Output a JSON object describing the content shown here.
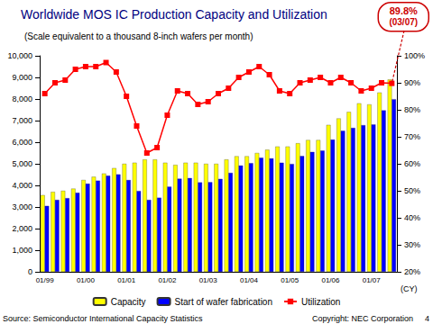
{
  "chart_data": {
    "type": "bar",
    "title": "Worldwide MOS IC Production Capacity and Utilization",
    "subtitle": "(Scale equivalent to a thousand 8-inch wafers per month)",
    "x_label": "(CY)",
    "annotation": [
      "89.8%",
      "(03/07)"
    ],
    "source": "Source: Semiconductor International Capacity Statistics",
    "copyright": "Copyright: NEC Corporation",
    "page_number": "4",
    "categories": [
      "01/99",
      null,
      null,
      null,
      "01/00",
      null,
      null,
      null,
      "01/01",
      null,
      null,
      null,
      "01/02",
      null,
      null,
      null,
      "01/03",
      null,
      null,
      null,
      "01/04",
      null,
      null,
      null,
      "01/05",
      null,
      null,
      null,
      "01/06",
      null,
      null,
      null,
      "01/07",
      null,
      null
    ],
    "series": [
      {
        "name": "Capacity",
        "type": "bar",
        "color": "#ffff00",
        "values": [
          3550,
          3700,
          3750,
          3850,
          4250,
          4400,
          4550,
          4800,
          5000,
          5050,
          5200,
          5200,
          5050,
          4950,
          5050,
          5050,
          5000,
          5000,
          5200,
          5350,
          5350,
          5500,
          5650,
          5800,
          5800,
          5950,
          6100,
          6100,
          6800,
          7100,
          7400,
          7800,
          7750,
          8300,
          8900
        ]
      },
      {
        "name": "Start of wafer fabrication",
        "type": "bar",
        "color": "#0000ff",
        "values": [
          3050,
          3330,
          3410,
          3660,
          4080,
          4220,
          4450,
          4510,
          4250,
          3740,
          3330,
          3430,
          3940,
          4310,
          4340,
          4140,
          4150,
          4300,
          4580,
          4920,
          5030,
          5280,
          5250,
          5050,
          4990,
          5360,
          5550,
          5610,
          6120,
          6530,
          6660,
          6790,
          6820,
          7470,
          7990
        ]
      },
      {
        "name": "Utilization",
        "type": "line",
        "axis": "y2",
        "color": "#ff0000",
        "marker": "square",
        "line_style": "solid",
        "values": [
          86,
          90,
          91,
          95,
          96,
          96,
          97.5,
          94,
          85,
          74,
          64,
          66,
          78,
          87,
          86,
          82,
          83,
          86,
          88,
          92,
          94,
          96,
          93,
          87,
          86,
          90,
          91,
          92,
          90,
          92,
          90,
          87,
          88,
          90,
          89.8
        ]
      }
    ],
    "ylim": [
      0,
      10000
    ],
    "yticks": [
      0,
      {
        "value": 1000,
        "label": "1,000"
      },
      {
        "value": 2000,
        "label": "2,000"
      },
      {
        "value": 3000,
        "label": "3,000"
      },
      {
        "value": 4000,
        "label": "4,000"
      },
      {
        "value": 5000,
        "label": "5,000"
      },
      {
        "value": 6000,
        "label": "6,000"
      },
      {
        "value": 7000,
        "label": "7,000"
      },
      {
        "value": 8000,
        "label": "8,000"
      },
      {
        "value": 9000,
        "label": "9,000"
      },
      {
        "value": 10000,
        "label": "10,000"
      }
    ],
    "y2lim": [
      20,
      100
    ],
    "y2ticks": [
      {
        "value": 20,
        "label": "20%"
      },
      {
        "value": 30,
        "label": "30%"
      },
      {
        "value": 40,
        "label": "40%"
      },
      {
        "value": 50,
        "label": "50%"
      },
      {
        "value": 60,
        "label": "60%"
      },
      {
        "value": 70,
        "label": "70%"
      },
      {
        "value": 80,
        "label": "80%"
      },
      {
        "value": 90,
        "label": "90%"
      },
      {
        "value": 100,
        "label": "100%"
      }
    ],
    "grid": false,
    "legend": "bottom"
  }
}
